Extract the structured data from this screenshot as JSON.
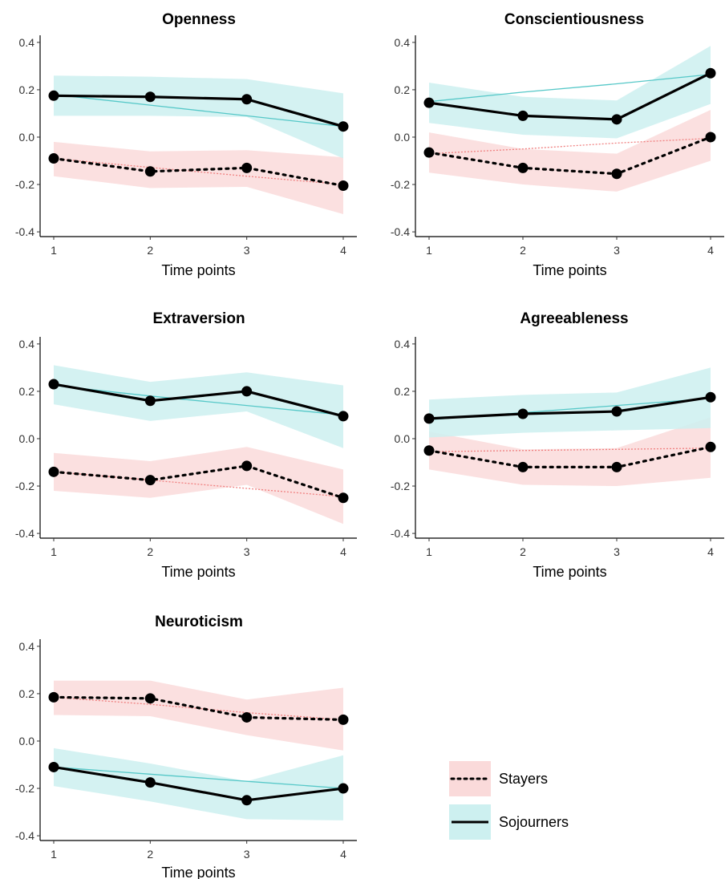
{
  "chart_data": [
    {
      "type": "line",
      "title": "Openness",
      "xlabel": "Time points",
      "ylabel": "",
      "x": [
        1,
        2,
        3,
        4
      ],
      "ylim": [
        -0.42,
        0.43
      ],
      "yticks": [
        "0.4",
        "0.2",
        "0.0",
        "-0.2",
        "-0.4"
      ],
      "ytick_values": [
        0.4,
        0.2,
        0.0,
        -0.2,
        -0.4
      ],
      "xticks": [
        "1",
        "2",
        "3",
        "4"
      ],
      "series": [
        {
          "name": "Stayers",
          "values": [
            -0.09,
            -0.145,
            -0.13,
            -0.205
          ],
          "trend": [
            -0.09,
            -0.128,
            -0.165,
            -0.2
          ],
          "band_lower": [
            -0.165,
            -0.215,
            -0.21,
            -0.325
          ],
          "band_upper": [
            -0.02,
            -0.06,
            -0.055,
            -0.085
          ]
        },
        {
          "name": "Sojourners",
          "values": [
            0.175,
            0.17,
            0.16,
            0.045
          ],
          "trend": [
            0.18,
            0.135,
            0.09,
            0.045
          ],
          "band_lower": [
            0.09,
            0.09,
            0.085,
            -0.09
          ],
          "band_upper": [
            0.26,
            0.255,
            0.245,
            0.185
          ]
        }
      ]
    },
    {
      "type": "line",
      "title": "Conscientiousness",
      "xlabel": "Time points",
      "ylabel": "",
      "x": [
        1,
        2,
        3,
        4
      ],
      "ylim": [
        -0.42,
        0.43
      ],
      "yticks": [
        "0.4",
        "0.2",
        "0.0",
        "-0.2",
        "-0.4"
      ],
      "ytick_values": [
        0.4,
        0.2,
        0.0,
        -0.2,
        -0.4
      ],
      "xticks": [
        "1",
        "2",
        "3",
        "4"
      ],
      "series": [
        {
          "name": "Stayers",
          "values": [
            -0.065,
            -0.13,
            -0.155,
            0.0
          ],
          "trend": [
            -0.07,
            -0.05,
            -0.025,
            -0.005
          ],
          "band_lower": [
            -0.15,
            -0.2,
            -0.23,
            -0.1
          ],
          "band_upper": [
            0.02,
            -0.05,
            -0.07,
            0.115
          ]
        },
        {
          "name": "Sojourners",
          "values": [
            0.145,
            0.09,
            0.075,
            0.27
          ],
          "trend": [
            0.15,
            0.19,
            0.225,
            0.265
          ],
          "band_lower": [
            0.06,
            0.01,
            -0.005,
            0.14
          ],
          "band_upper": [
            0.23,
            0.17,
            0.155,
            0.385
          ]
        }
      ]
    },
    {
      "type": "line",
      "title": "Extraversion",
      "xlabel": "Time points",
      "ylabel": "",
      "x": [
        1,
        2,
        3,
        4
      ],
      "ylim": [
        -0.42,
        0.43
      ],
      "yticks": [
        "0.4",
        "0.2",
        "0.0",
        "-0.2",
        "-0.4"
      ],
      "ytick_values": [
        0.4,
        0.2,
        0.0,
        -0.2,
        -0.4
      ],
      "xticks": [
        "1",
        "2",
        "3",
        "4"
      ],
      "series": [
        {
          "name": "Stayers",
          "values": [
            -0.14,
            -0.175,
            -0.115,
            -0.25
          ],
          "trend": [
            -0.14,
            -0.175,
            -0.21,
            -0.245
          ],
          "band_lower": [
            -0.22,
            -0.25,
            -0.195,
            -0.36
          ],
          "band_upper": [
            -0.06,
            -0.095,
            -0.035,
            -0.13
          ]
        },
        {
          "name": "Sojourners",
          "values": [
            0.23,
            0.16,
            0.2,
            0.095
          ],
          "trend": [
            0.225,
            0.18,
            0.14,
            0.1
          ],
          "band_lower": [
            0.145,
            0.075,
            0.115,
            -0.04
          ],
          "band_upper": [
            0.31,
            0.24,
            0.28,
            0.225
          ]
        }
      ]
    },
    {
      "type": "line",
      "title": "Agreeableness",
      "xlabel": "Time points",
      "ylabel": "",
      "x": [
        1,
        2,
        3,
        4
      ],
      "ylim": [
        -0.42,
        0.43
      ],
      "yticks": [
        "0.4",
        "0.2",
        "0.0",
        "-0.2",
        "-0.4"
      ],
      "ytick_values": [
        0.4,
        0.2,
        0.0,
        -0.2,
        -0.4
      ],
      "xticks": [
        "1",
        "2",
        "3",
        "4"
      ],
      "series": [
        {
          "name": "Stayers",
          "values": [
            -0.05,
            -0.12,
            -0.12,
            -0.035
          ],
          "trend": [
            -0.055,
            -0.05,
            -0.045,
            -0.04
          ],
          "band_lower": [
            -0.13,
            -0.195,
            -0.2,
            -0.165
          ],
          "band_upper": [
            0.03,
            -0.045,
            -0.04,
            0.09
          ]
        },
        {
          "name": "Sojourners",
          "values": [
            0.085,
            0.105,
            0.115,
            0.175
          ],
          "trend": [
            0.08,
            0.11,
            0.14,
            0.17
          ],
          "band_lower": [
            0.005,
            0.025,
            0.035,
            0.045
          ],
          "band_upper": [
            0.165,
            0.185,
            0.195,
            0.3
          ]
        }
      ]
    },
    {
      "type": "line",
      "title": "Neuroticism",
      "xlabel": "Time points",
      "ylabel": "",
      "x": [
        1,
        2,
        3,
        4
      ],
      "ylim": [
        -0.42,
        0.43
      ],
      "yticks": [
        "0.4",
        "0.2",
        "0.0",
        "-0.2",
        "-0.4"
      ],
      "ytick_values": [
        0.4,
        0.2,
        0.0,
        -0.2,
        -0.4
      ],
      "xticks": [
        "1",
        "2",
        "3",
        "4"
      ],
      "series": [
        {
          "name": "Stayers",
          "values": [
            0.185,
            0.18,
            0.1,
            0.09
          ],
          "trend": [
            0.185,
            0.155,
            0.12,
            0.09
          ],
          "band_lower": [
            0.11,
            0.105,
            0.025,
            -0.04
          ],
          "band_upper": [
            0.255,
            0.255,
            0.175,
            0.225
          ]
        },
        {
          "name": "Sojourners",
          "values": [
            -0.11,
            -0.175,
            -0.25,
            -0.2
          ],
          "trend": [
            -0.11,
            -0.14,
            -0.17,
            -0.2
          ],
          "band_lower": [
            -0.19,
            -0.255,
            -0.33,
            -0.335
          ],
          "band_upper": [
            -0.03,
            -0.095,
            -0.17,
            -0.06
          ]
        }
      ]
    }
  ],
  "legend": {
    "items": [
      {
        "label": "Stayers",
        "linestyle": "dotted",
        "band_color": "#fadada"
      },
      {
        "label": "Sojourners",
        "linestyle": "solid",
        "band_color": "#cdf0f0"
      }
    ]
  },
  "colors": {
    "stayers_band": "#fadada",
    "stayers_trend": "#f08080",
    "sojourners_band": "#cdf0f0",
    "sojourners_trend": "#56c8c8",
    "observed": "#000000"
  }
}
